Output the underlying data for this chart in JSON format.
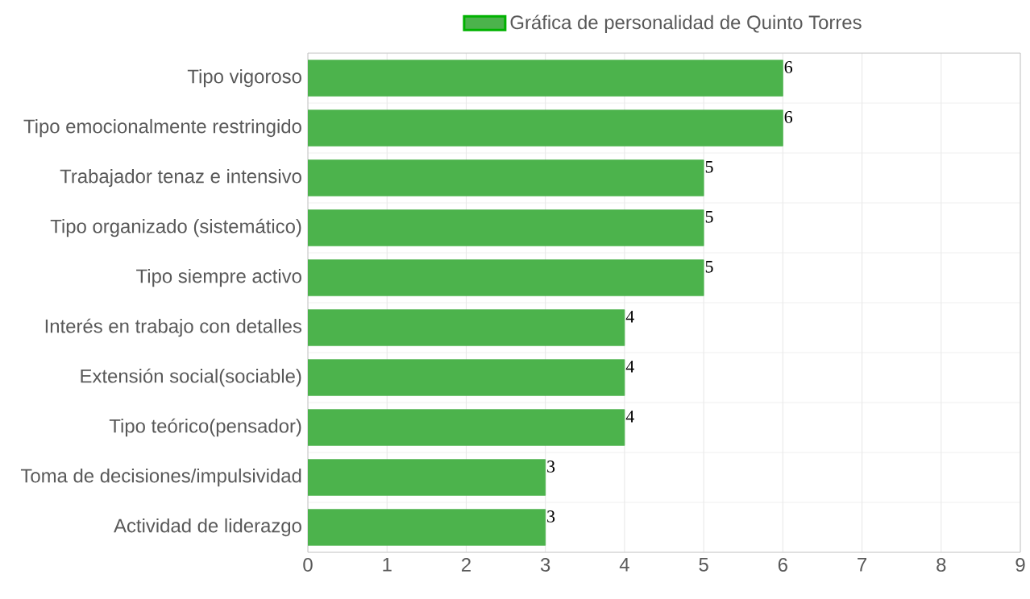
{
  "chart_data": {
    "type": "bar",
    "orientation": "horizontal",
    "categories": [
      "Tipo vigoroso",
      "Tipo emocionalmente restringido",
      "Trabajador tenaz e intensivo",
      "Tipo organizado (sistemático)",
      "Tipo siempre activo",
      "Interés en trabajo con detalles",
      "Extensión social(sociable)",
      "Tipo teórico(pensador)",
      "Toma de decisiones/impulsividad",
      "Actividad de liderazgo"
    ],
    "series": [
      {
        "name": "Gráfica de personalidad de Quinto Torres",
        "color": "#4cb34c",
        "values": [
          6,
          6,
          5,
          5,
          5,
          4,
          4,
          4,
          3,
          3
        ]
      }
    ],
    "xlim": [
      0,
      9
    ],
    "xticks": [
      0,
      1,
      2,
      3,
      4,
      5,
      6,
      7,
      8,
      9
    ],
    "grid": true,
    "legend": "top",
    "data_labels": true
  }
}
